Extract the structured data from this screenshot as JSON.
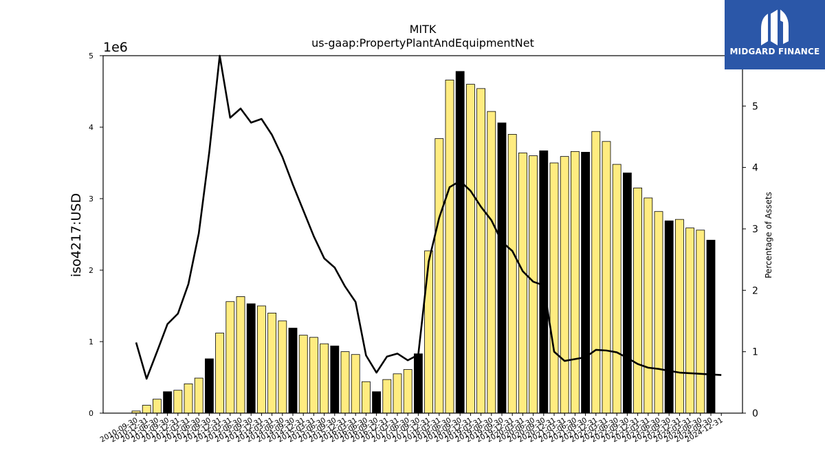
{
  "chart_data": {
    "type": "bar",
    "title": "MITK",
    "subtitle": "us-gaap:PropertyPlantAndEquipmentNet",
    "ylabel": "iso4217:USD",
    "y_multiplier": "1e6",
    "y2label": "Percentage of Assets",
    "ylim": [
      0,
      5000000
    ],
    "y2lim": [
      0,
      5.82
    ],
    "yticks": [
      0,
      1000000,
      2000000,
      3000000,
      4000000,
      5000000
    ],
    "yticklabels": [
      "0",
      "1",
      "2",
      "3",
      "4",
      "5"
    ],
    "y2ticks": [
      0,
      1,
      2,
      3,
      4,
      5
    ],
    "grid": false,
    "categories": [
      "2010-09-30",
      "2010-12-31",
      "2011-06-30",
      "2011-09-30",
      "2011-12-31",
      "2012-03-31",
      "2012-06-30",
      "2012-09-30",
      "2012-12-31",
      "2013-03-31",
      "2013-06-30",
      "2013-09-30",
      "2013-12-31",
      "2014-03-31",
      "2014-06-30",
      "2014-09-30",
      "2014-12-31",
      "2015-03-31",
      "2015-06-30",
      "2015-09-30",
      "2015-12-31",
      "2016-03-31",
      "2016-06-30",
      "2016-09-30",
      "2016-12-31",
      "2017-03-31",
      "2017-06-30",
      "2017-09-30",
      "2017-12-31",
      "2018-03-31",
      "2018-06-30",
      "2018-09-30",
      "2018-12-31",
      "2019-03-31",
      "2019-06-30",
      "2019-09-30",
      "2019-12-31",
      "2020-03-31",
      "2020-06-30",
      "2020-09-30",
      "2020-12-31",
      "2021-03-31",
      "2021-06-30",
      "2021-09-30",
      "2021-12-31",
      "2022-03-31",
      "2022-06-30",
      "2022-09-30",
      "2022-12-31",
      "2023-03-31",
      "2023-06-30",
      "2023-09-30",
      "2023-12-31",
      "2024-03-31",
      "2024-06-30",
      "2024-09-30",
      "2024-12-31"
    ],
    "series": [
      {
        "name": "",
        "kind": "bar",
        "axis": "left",
        "values": [
          30000,
          110000,
          195000,
          300000,
          320000,
          410000,
          490000,
          760000,
          1120000,
          1560000,
          1630000,
          1530000,
          1500000,
          1400000,
          1290000,
          1190000,
          1090000,
          1060000,
          970000,
          940000,
          860000,
          820000,
          440000,
          300000,
          470000,
          550000,
          610000,
          830000,
          2270000,
          3840000,
          4660000,
          4780000,
          4600000,
          4540000,
          4220000,
          4060000,
          3900000,
          3640000,
          3600000,
          3670000,
          3500000,
          3590000,
          3660000,
          3650000,
          3940000,
          3800000,
          3480000,
          3360000,
          3150000,
          3010000,
          2820000,
          2690000,
          2710000,
          2590000,
          2560000,
          2420000,
          0
        ],
        "highlight_index": [
          3,
          7,
          11,
          15,
          19,
          23,
          27,
          31,
          35,
          39,
          43,
          47,
          51,
          55
        ]
      },
      {
        "name": "",
        "kind": "line",
        "axis": "right",
        "values": [
          1.15,
          0.56,
          1.0,
          1.45,
          1.62,
          2.1,
          2.93,
          4.25,
          6.0,
          4.81,
          4.96,
          4.73,
          4.79,
          4.53,
          4.17,
          3.72,
          3.3,
          2.88,
          2.52,
          2.37,
          2.06,
          1.81,
          0.94,
          0.66,
          0.92,
          0.97,
          0.86,
          0.95,
          2.47,
          3.18,
          3.68,
          3.78,
          3.62,
          3.36,
          3.14,
          2.79,
          2.64,
          2.31,
          2.14,
          2.08,
          1.0,
          0.85,
          0.88,
          0.91,
          1.03,
          1.02,
          0.99,
          0.9,
          0.8,
          0.74,
          0.72,
          0.69,
          0.66,
          0.65,
          0.64,
          0.63,
          0.62
        ]
      }
    ],
    "colors": {
      "bar": "#ffec80",
      "bar_highlight": "#000000",
      "bar_edge": "#000000",
      "line": "#000000"
    }
  },
  "logo": {
    "text": "MIDGARD FINANCE",
    "color": "#2b57a8"
  }
}
